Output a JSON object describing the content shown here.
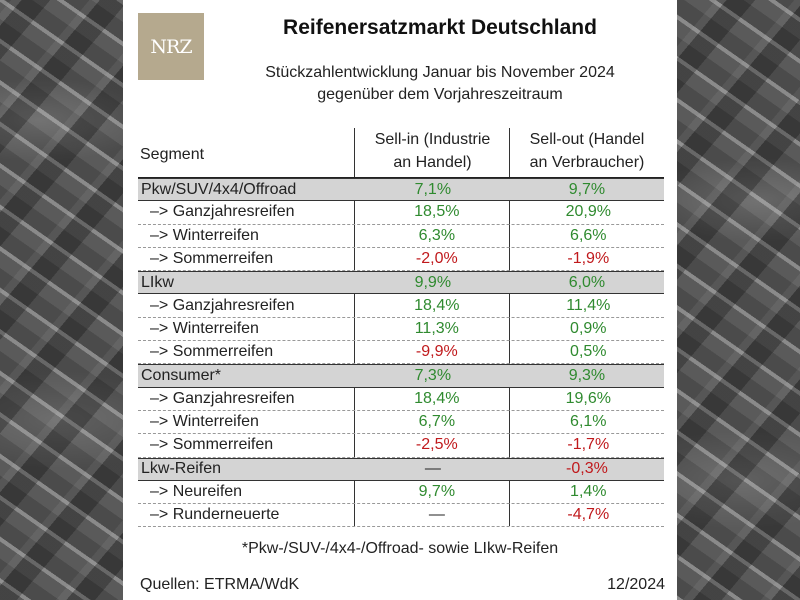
{
  "logo_text": "NRZ",
  "chart_data": {
    "type": "table",
    "title": "Reifenersatzmarkt Deutschland",
    "subtitle_line1": "Stückzahlentwicklung Januar bis November 2024",
    "subtitle_line2": "gegenüber dem Vorjahreszeitraum",
    "columns": {
      "segment": "Segment",
      "sell_in_line1": "Sell-in (Industrie",
      "sell_in_line2": "an Handel)",
      "sell_out_line1": "Sell-out (Handel",
      "sell_out_line2": "an Verbraucher)"
    },
    "rows": [
      {
        "segment": "Pkw/SUV/4x4/Offroad",
        "category": true,
        "sell_in": "7,1%",
        "sell_out": "9,7%"
      },
      {
        "segment": "–> Ganzjahresreifen",
        "category": false,
        "sell_in": "18,5%",
        "sell_out": "20,9%"
      },
      {
        "segment": "–> Winterreifen",
        "category": false,
        "sell_in": "6,3%",
        "sell_out": "6,6%"
      },
      {
        "segment": "–> Sommerreifen",
        "category": false,
        "sell_in": "-2,0%",
        "sell_out": "-1,9%"
      },
      {
        "segment": "LIkw",
        "category": true,
        "sell_in": "9,9%",
        "sell_out": "6,0%"
      },
      {
        "segment": "–> Ganzjahresreifen",
        "category": false,
        "sell_in": "18,4%",
        "sell_out": "11,4%"
      },
      {
        "segment": "–> Winterreifen",
        "category": false,
        "sell_in": "11,3%",
        "sell_out": "0,9%"
      },
      {
        "segment": "–> Sommerreifen",
        "category": false,
        "sell_in": "-9,9%",
        "sell_out": "0,5%"
      },
      {
        "segment": "Consumer*",
        "category": true,
        "sell_in": "7,3%",
        "sell_out": "9,3%"
      },
      {
        "segment": "–> Ganzjahresreifen",
        "category": false,
        "sell_in": "18,4%",
        "sell_out": "19,6%"
      },
      {
        "segment": "–> Winterreifen",
        "category": false,
        "sell_in": "6,7%",
        "sell_out": "6,1%"
      },
      {
        "segment": "–> Sommerreifen",
        "category": false,
        "sell_in": "-2,5%",
        "sell_out": "-1,7%"
      },
      {
        "segment": "Lkw-Reifen",
        "category": true,
        "sell_in": "—",
        "sell_out": "-0,3%"
      },
      {
        "segment": "–> Neureifen",
        "category": false,
        "sell_in": "9,7%",
        "sell_out": "1,4%"
      },
      {
        "segment": "–> Runderneuerte",
        "category": false,
        "sell_in": "—",
        "sell_out": "-4,7%"
      }
    ],
    "footnote": "*Pkw-/SUV-/4x4-/Offroad- sowie LIkw-Reifen",
    "sources": "Quellen: ETRMA/WdK",
    "date": "12/2024"
  },
  "colors": {
    "positive": "#2f8a2f",
    "negative": "#c0191c",
    "category_row": "#d4d4d4",
    "logo_bg": "#b5a98e"
  }
}
